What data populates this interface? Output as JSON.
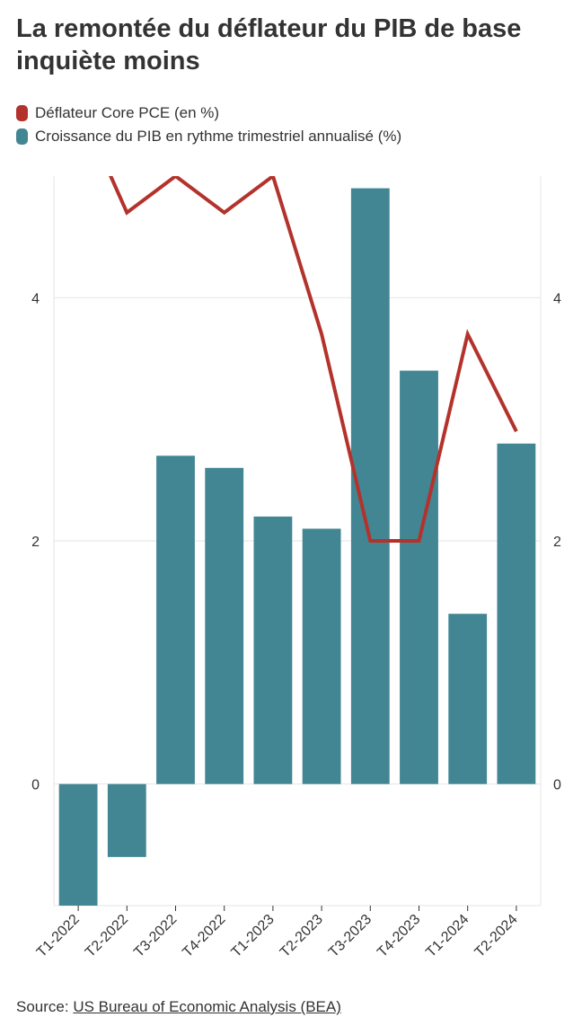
{
  "title": "La remontée du déflateur du PIB de base inquiète moins",
  "source": {
    "prefix": "Source: ",
    "link_text": "US Bureau of Economic Analysis (BEA)"
  },
  "colors": {
    "line": "#b3332c",
    "bars": "#428694",
    "grid": "#e6e6e6",
    "text": "#333333"
  },
  "chart_data": {
    "type": "bar",
    "title": "La remontée du déflateur du PIB de base inquiète moins",
    "categories": [
      "T1-2022",
      "T2-2022",
      "T3-2022",
      "T4-2022",
      "T1-2023",
      "T2-2023",
      "T3-2023",
      "T4-2023",
      "T1-2024",
      "T2-2024"
    ],
    "series": [
      {
        "name": "Croissance du PIB en rythme trimestriel annualisé (%)",
        "kind": "bar",
        "color": "#428694",
        "values": [
          -1.0,
          -0.6,
          2.7,
          2.6,
          2.2,
          2.1,
          4.9,
          3.4,
          1.4,
          2.8
        ]
      },
      {
        "name": "Déflateur Core PCE (en %)",
        "kind": "line",
        "color": "#b3332c",
        "values": [
          5.6,
          4.7,
          5.0,
          4.7,
          5.0,
          3.7,
          2.0,
          2.0,
          3.7,
          2.9
        ]
      }
    ],
    "ylim": [
      -1.0,
      5.0
    ],
    "yticks": [
      0,
      2,
      4
    ],
    "ytick_labels": [
      "0",
      "2",
      "4"
    ],
    "xlabel": "",
    "ylabel": "",
    "grid": true,
    "legend_position": "top-left",
    "secondary_axis": true
  }
}
